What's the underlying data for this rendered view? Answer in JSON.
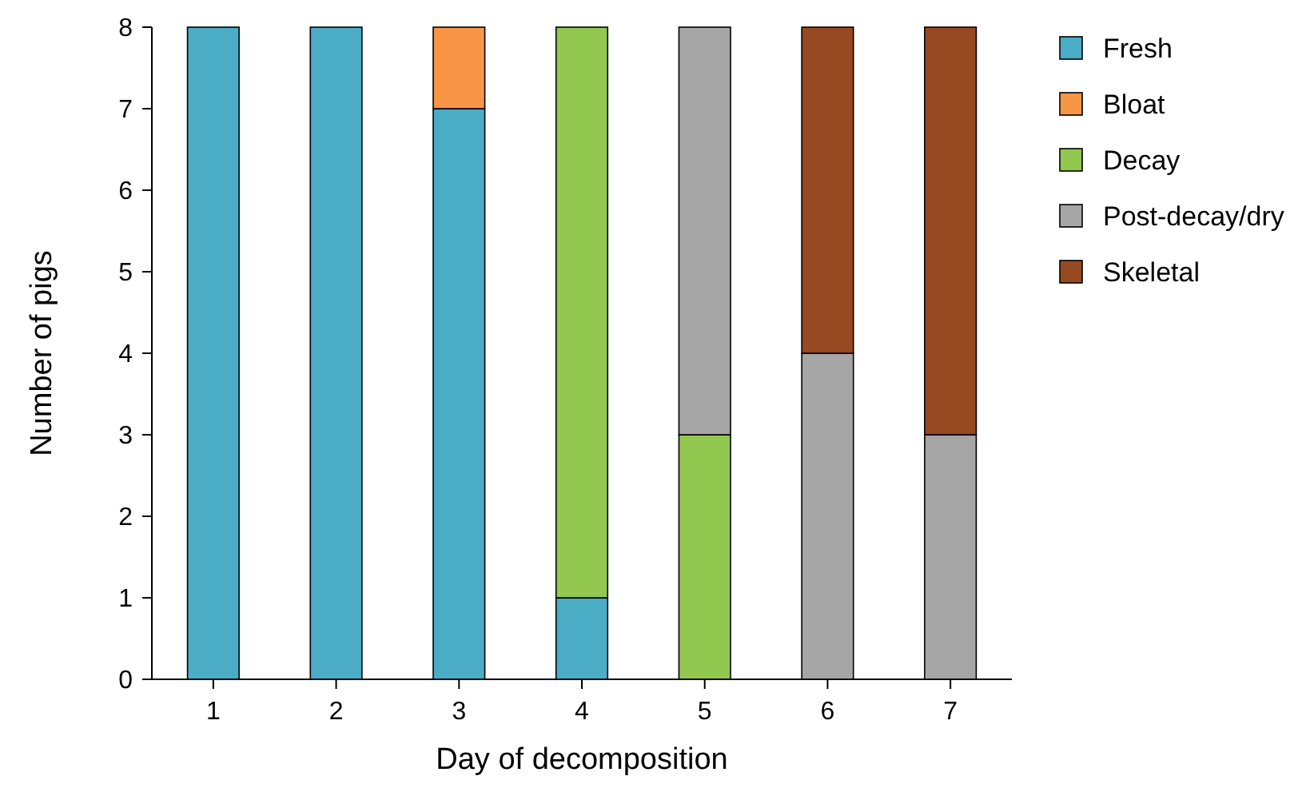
{
  "chart_data": {
    "type": "bar",
    "stacked": true,
    "xlabel": "Day of decomposition",
    "ylabel": "Number of pigs",
    "categories": [
      "1",
      "2",
      "3",
      "4",
      "5",
      "6",
      "7"
    ],
    "series": [
      {
        "name": "Fresh",
        "color": "#4bacc6",
        "values": [
          8,
          8,
          7,
          1,
          null,
          null,
          null
        ]
      },
      {
        "name": "Bloat",
        "color": "#f79646",
        "values": [
          null,
          null,
          1,
          null,
          null,
          null,
          null
        ]
      },
      {
        "name": "Decay",
        "color": "#92c850",
        "values": [
          null,
          null,
          null,
          7,
          3,
          null,
          null
        ]
      },
      {
        "name": "Post-decay/dry",
        "color": "#a6a6a6",
        "values": [
          null,
          null,
          null,
          null,
          5,
          4,
          3
        ]
      },
      {
        "name": "Skeletal",
        "color": "#974a21",
        "values": [
          null,
          null,
          null,
          null,
          null,
          4,
          5
        ]
      }
    ],
    "ylim": [
      0,
      8
    ],
    "yticks": [
      0,
      1,
      2,
      3,
      4,
      5,
      6,
      7,
      8
    ],
    "grid": false,
    "legend": "right"
  }
}
